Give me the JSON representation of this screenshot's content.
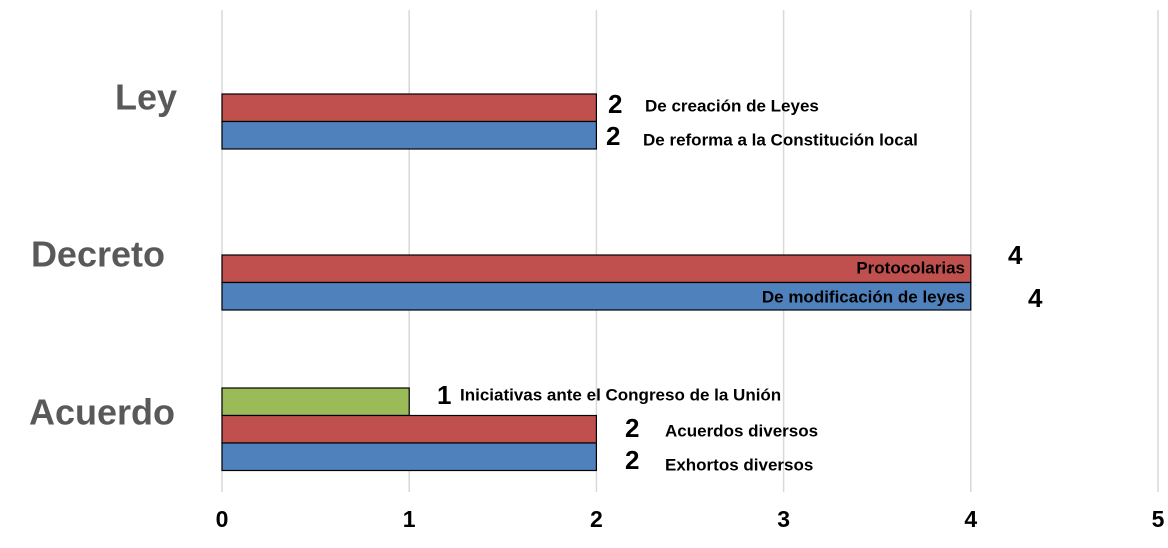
{
  "chart_data": {
    "type": "bar",
    "orientation": "horizontal",
    "categories": [
      "Ley",
      "Decreto",
      "Acuerdo"
    ],
    "groups": [
      {
        "bars": [
          {
            "name": "De creación de Leyes",
            "value": 2,
            "color": "#c0504d"
          },
          {
            "name": "De reforma a la Constitución local",
            "value": 2,
            "color": "#4f81bd"
          }
        ]
      },
      {
        "bars": [
          {
            "name": "Protocolarias",
            "value": 4,
            "color": "#c0504d"
          },
          {
            "name": "De modificación de leyes",
            "value": 4,
            "color": "#4f81bd"
          }
        ]
      },
      {
        "bars": [
          {
            "name": "Iniciativas ante el Congreso de la Unión",
            "value": 1,
            "color": "#9bbb59"
          },
          {
            "name": "Acuerdos diversos",
            "value": 2,
            "color": "#c0504d"
          },
          {
            "name": "Exhortos diversos",
            "value": 2,
            "color": "#4f81bd"
          }
        ]
      }
    ],
    "xlim": [
      0,
      5
    ],
    "xticks": [
      0,
      1,
      2,
      3,
      4,
      5
    ],
    "grid": true
  }
}
